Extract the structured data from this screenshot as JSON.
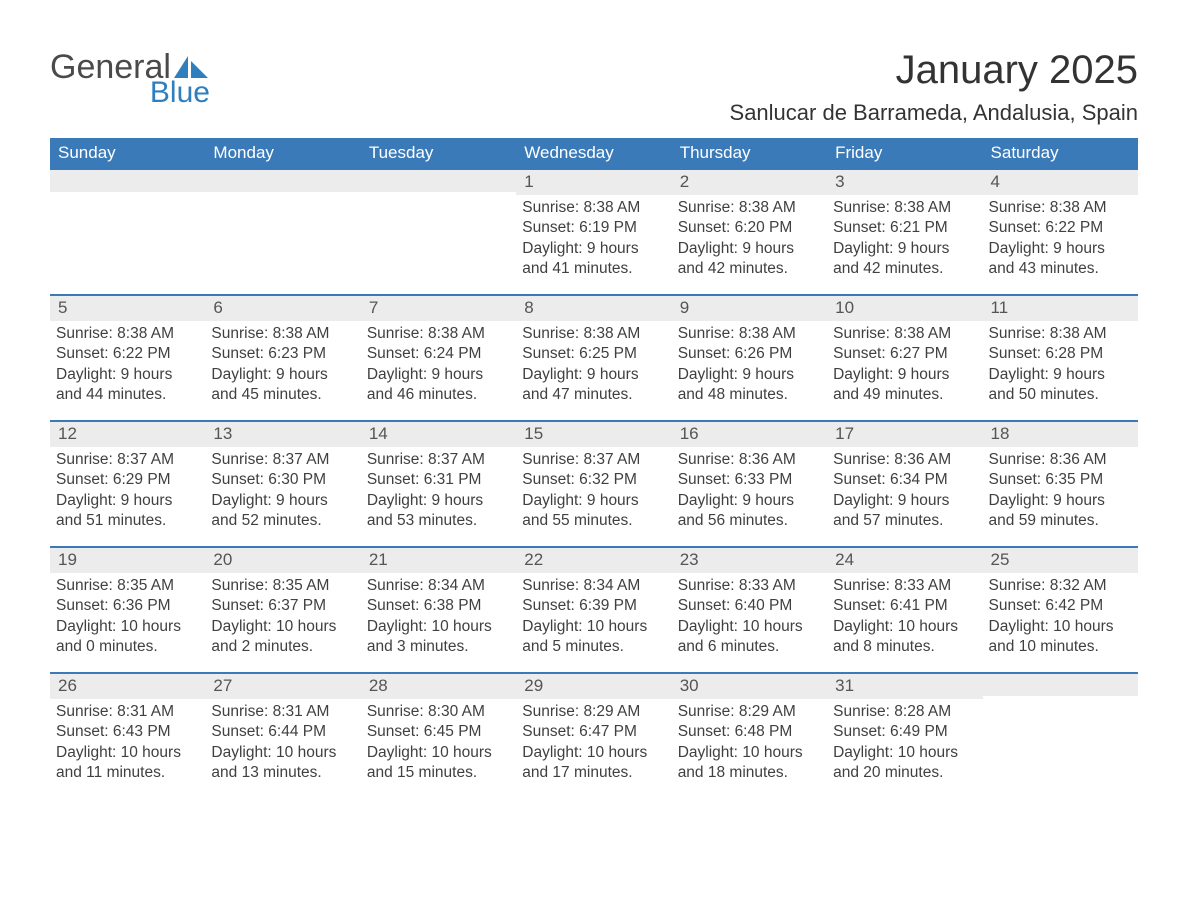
{
  "logo": {
    "text_general": "General",
    "text_blue": "Blue",
    "color_general": "#4a4a4a",
    "color_blue": "#2f7fbf"
  },
  "title": "January 2025",
  "subtitle": "Sanlucar de Barrameda, Andalusia, Spain",
  "colors": {
    "header_bg": "#3a7ab8",
    "header_text": "#ffffff",
    "daynum_bg": "#ececec",
    "daynum_border": "#3a7ab8",
    "page_bg": "#ffffff",
    "text": "#404040"
  },
  "fonts": {
    "title_size_pt": 30,
    "subtitle_size_pt": 17,
    "body_size_pt": 12,
    "dayheader_size_pt": 13
  },
  "day_names": [
    "Sunday",
    "Monday",
    "Tuesday",
    "Wednesday",
    "Thursday",
    "Friday",
    "Saturday"
  ],
  "weeks": [
    [
      {
        "day": "",
        "sunrise": "",
        "sunset": "",
        "daylight": ""
      },
      {
        "day": "",
        "sunrise": "",
        "sunset": "",
        "daylight": ""
      },
      {
        "day": "",
        "sunrise": "",
        "sunset": "",
        "daylight": ""
      },
      {
        "day": "1",
        "sunrise": "8:38 AM",
        "sunset": "6:19 PM",
        "daylight": "9 hours and 41 minutes."
      },
      {
        "day": "2",
        "sunrise": "8:38 AM",
        "sunset": "6:20 PM",
        "daylight": "9 hours and 42 minutes."
      },
      {
        "day": "3",
        "sunrise": "8:38 AM",
        "sunset": "6:21 PM",
        "daylight": "9 hours and 42 minutes."
      },
      {
        "day": "4",
        "sunrise": "8:38 AM",
        "sunset": "6:22 PM",
        "daylight": "9 hours and 43 minutes."
      }
    ],
    [
      {
        "day": "5",
        "sunrise": "8:38 AM",
        "sunset": "6:22 PM",
        "daylight": "9 hours and 44 minutes."
      },
      {
        "day": "6",
        "sunrise": "8:38 AM",
        "sunset": "6:23 PM",
        "daylight": "9 hours and 45 minutes."
      },
      {
        "day": "7",
        "sunrise": "8:38 AM",
        "sunset": "6:24 PM",
        "daylight": "9 hours and 46 minutes."
      },
      {
        "day": "8",
        "sunrise": "8:38 AM",
        "sunset": "6:25 PM",
        "daylight": "9 hours and 47 minutes."
      },
      {
        "day": "9",
        "sunrise": "8:38 AM",
        "sunset": "6:26 PM",
        "daylight": "9 hours and 48 minutes."
      },
      {
        "day": "10",
        "sunrise": "8:38 AM",
        "sunset": "6:27 PM",
        "daylight": "9 hours and 49 minutes."
      },
      {
        "day": "11",
        "sunrise": "8:38 AM",
        "sunset": "6:28 PM",
        "daylight": "9 hours and 50 minutes."
      }
    ],
    [
      {
        "day": "12",
        "sunrise": "8:37 AM",
        "sunset": "6:29 PM",
        "daylight": "9 hours and 51 minutes."
      },
      {
        "day": "13",
        "sunrise": "8:37 AM",
        "sunset": "6:30 PM",
        "daylight": "9 hours and 52 minutes."
      },
      {
        "day": "14",
        "sunrise": "8:37 AM",
        "sunset": "6:31 PM",
        "daylight": "9 hours and 53 minutes."
      },
      {
        "day": "15",
        "sunrise": "8:37 AM",
        "sunset": "6:32 PM",
        "daylight": "9 hours and 55 minutes."
      },
      {
        "day": "16",
        "sunrise": "8:36 AM",
        "sunset": "6:33 PM",
        "daylight": "9 hours and 56 minutes."
      },
      {
        "day": "17",
        "sunrise": "8:36 AM",
        "sunset": "6:34 PM",
        "daylight": "9 hours and 57 minutes."
      },
      {
        "day": "18",
        "sunrise": "8:36 AM",
        "sunset": "6:35 PM",
        "daylight": "9 hours and 59 minutes."
      }
    ],
    [
      {
        "day": "19",
        "sunrise": "8:35 AM",
        "sunset": "6:36 PM",
        "daylight": "10 hours and 0 minutes."
      },
      {
        "day": "20",
        "sunrise": "8:35 AM",
        "sunset": "6:37 PM",
        "daylight": "10 hours and 2 minutes."
      },
      {
        "day": "21",
        "sunrise": "8:34 AM",
        "sunset": "6:38 PM",
        "daylight": "10 hours and 3 minutes."
      },
      {
        "day": "22",
        "sunrise": "8:34 AM",
        "sunset": "6:39 PM",
        "daylight": "10 hours and 5 minutes."
      },
      {
        "day": "23",
        "sunrise": "8:33 AM",
        "sunset": "6:40 PM",
        "daylight": "10 hours and 6 minutes."
      },
      {
        "day": "24",
        "sunrise": "8:33 AM",
        "sunset": "6:41 PM",
        "daylight": "10 hours and 8 minutes."
      },
      {
        "day": "25",
        "sunrise": "8:32 AM",
        "sunset": "6:42 PM",
        "daylight": "10 hours and 10 minutes."
      }
    ],
    [
      {
        "day": "26",
        "sunrise": "8:31 AM",
        "sunset": "6:43 PM",
        "daylight": "10 hours and 11 minutes."
      },
      {
        "day": "27",
        "sunrise": "8:31 AM",
        "sunset": "6:44 PM",
        "daylight": "10 hours and 13 minutes."
      },
      {
        "day": "28",
        "sunrise": "8:30 AM",
        "sunset": "6:45 PM",
        "daylight": "10 hours and 15 minutes."
      },
      {
        "day": "29",
        "sunrise": "8:29 AM",
        "sunset": "6:47 PM",
        "daylight": "10 hours and 17 minutes."
      },
      {
        "day": "30",
        "sunrise": "8:29 AM",
        "sunset": "6:48 PM",
        "daylight": "10 hours and 18 minutes."
      },
      {
        "day": "31",
        "sunrise": "8:28 AM",
        "sunset": "6:49 PM",
        "daylight": "10 hours and 20 minutes."
      },
      {
        "day": "",
        "sunrise": "",
        "sunset": "",
        "daylight": ""
      }
    ]
  ],
  "labels": {
    "sunrise": "Sunrise: ",
    "sunset": "Sunset: ",
    "daylight": "Daylight: "
  }
}
